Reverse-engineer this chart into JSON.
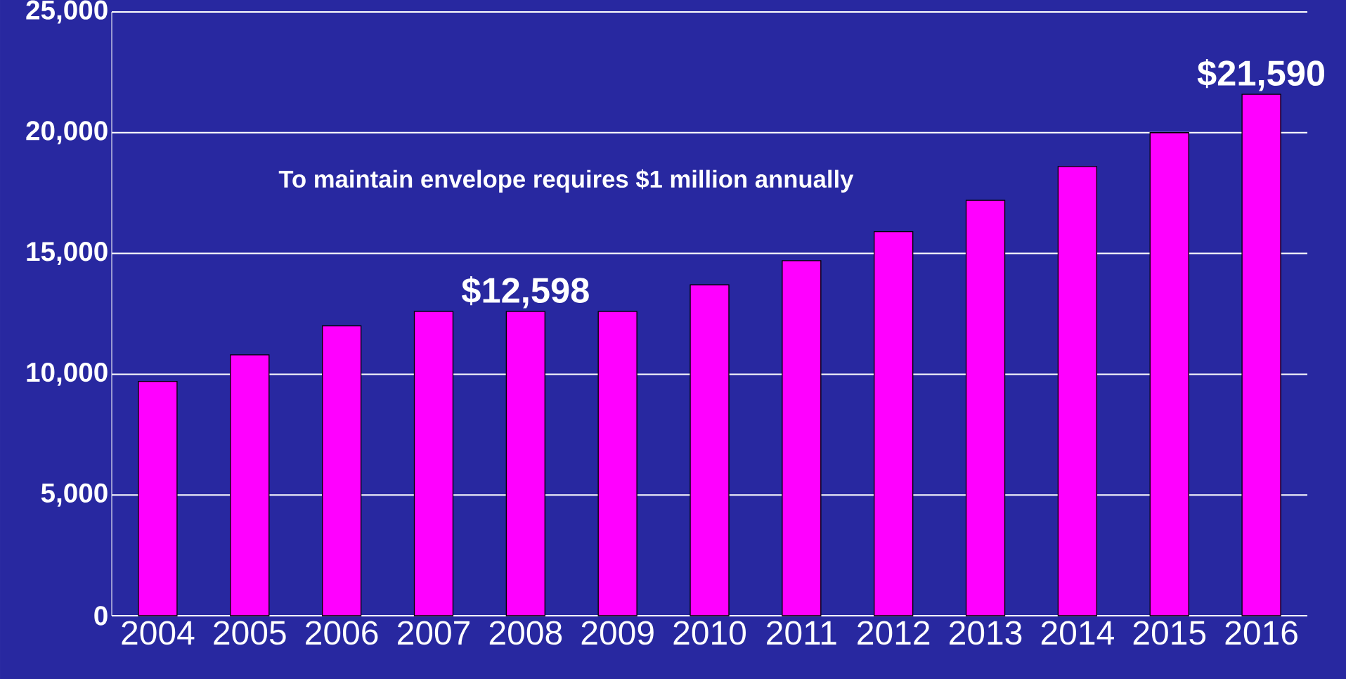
{
  "chart_data": {
    "type": "bar",
    "categories": [
      "2004",
      "2005",
      "2006",
      "2007",
      "2008",
      "2009",
      "2010",
      "2011",
      "2012",
      "2013",
      "2014",
      "2015",
      "2016"
    ],
    "values": [
      9700,
      10800,
      12000,
      12600,
      12598,
      12600,
      13700,
      14700,
      15900,
      17200,
      18600,
      20000,
      21590
    ],
    "value_labels": [
      null,
      null,
      null,
      null,
      "$12,598",
      null,
      null,
      null,
      null,
      null,
      null,
      null,
      "$21,590"
    ],
    "color": "#ff00ff",
    "ylim": [
      0,
      25000
    ],
    "yticks": [
      {
        "value": 0,
        "label": "0"
      },
      {
        "value": 5000,
        "label": "5,000"
      },
      {
        "value": 10000,
        "label": "10,000"
      },
      {
        "value": 15000,
        "label": "15,000"
      },
      {
        "value": 20000,
        "label": "20,000"
      },
      {
        "value": 25000,
        "label": "25,000"
      }
    ],
    "grid": "y",
    "annotations": [
      "To maintain envelope requires $1 million annually"
    ]
  }
}
